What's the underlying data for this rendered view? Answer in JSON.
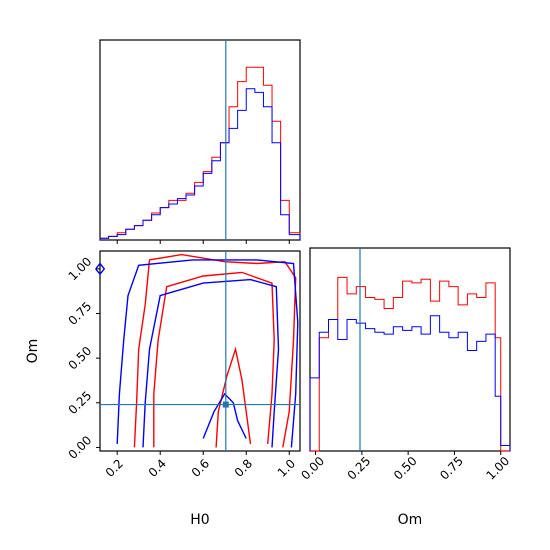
{
  "chart_data": [
    {
      "id": "h0_hist",
      "type": "histogram",
      "xlabel": "",
      "ylabel": "",
      "xlim": [
        0.12,
        1.05
      ],
      "ylim": [
        0,
        1.0
      ],
      "truth_line_x": 0.705,
      "bin_edges": [
        0.12,
        0.16,
        0.2,
        0.24,
        0.28,
        0.32,
        0.36,
        0.4,
        0.44,
        0.48,
        0.52,
        0.56,
        0.6,
        0.64,
        0.68,
        0.72,
        0.76,
        0.8,
        0.84,
        0.88,
        0.92,
        0.96,
        1.0,
        1.05
      ],
      "series": [
        {
          "color": "#ff0000",
          "values": [
            0.01,
            0.02,
            0.04,
            0.06,
            0.08,
            0.11,
            0.15,
            0.18,
            0.22,
            0.22,
            0.26,
            0.32,
            0.38,
            0.46,
            0.54,
            0.74,
            0.88,
            0.96,
            0.96,
            0.86,
            0.66,
            0.22,
            0.04
          ]
        },
        {
          "color": "#0000ff",
          "values": [
            0.01,
            0.02,
            0.03,
            0.06,
            0.08,
            0.11,
            0.14,
            0.18,
            0.2,
            0.23,
            0.25,
            0.3,
            0.37,
            0.44,
            0.54,
            0.62,
            0.72,
            0.84,
            0.82,
            0.74,
            0.54,
            0.14,
            0.03
          ]
        }
      ]
    },
    {
      "id": "h0_om_contour",
      "type": "contour",
      "xlabel": "H0",
      "ylabel": "Om",
      "xlim": [
        0.12,
        1.05
      ],
      "ylim": [
        -0.02,
        1.1
      ],
      "xticks": [
        0.2,
        0.4,
        0.6,
        0.8,
        1.0
      ],
      "xtick_labels": [
        "0.2",
        "0.4",
        "0.6",
        "0.8",
        "1.0"
      ],
      "yticks": [
        0.0,
        0.25,
        0.5,
        0.75,
        1.0
      ],
      "ytick_labels": [
        "0.00",
        "0.25",
        "0.50",
        "0.75",
        "1.00"
      ],
      "truth_x": 0.705,
      "truth_y": 0.24,
      "contours": [
        {
          "color": "#ff0000",
          "points": [
            [
              0.28,
              0.0
            ],
            [
              0.29,
              0.25
            ],
            [
              0.3,
              0.55
            ],
            [
              0.33,
              0.8
            ],
            [
              0.35,
              1.05
            ],
            [
              0.5,
              1.08
            ],
            [
              0.7,
              1.04
            ],
            [
              0.85,
              1.03
            ],
            [
              0.98,
              1.04
            ],
            [
              1.03,
              0.95
            ],
            [
              1.02,
              0.6
            ],
            [
              1.0,
              0.2
            ],
            [
              0.97,
              0.0
            ]
          ]
        },
        {
          "color": "#ff0000",
          "points": [
            [
              0.37,
              0.0
            ],
            [
              0.37,
              0.3
            ],
            [
              0.39,
              0.6
            ],
            [
              0.43,
              0.9
            ],
            [
              0.6,
              0.96
            ],
            [
              0.78,
              0.98
            ],
            [
              0.92,
              0.92
            ],
            [
              0.93,
              0.6
            ],
            [
              0.92,
              0.3
            ],
            [
              0.9,
              0.02
            ]
          ]
        },
        {
          "color": "#ff0000",
          "points": [
            [
              0.66,
              0.0
            ],
            [
              0.67,
              0.2
            ],
            [
              0.71,
              0.4
            ],
            [
              0.75,
              0.55
            ],
            [
              0.78,
              0.38
            ],
            [
              0.8,
              0.2
            ],
            [
              0.82,
              0.02
            ]
          ]
        },
        {
          "color": "#0000ff",
          "points": [
            [
              0.2,
              0.02
            ],
            [
              0.21,
              0.3
            ],
            [
              0.23,
              0.6
            ],
            [
              0.25,
              0.85
            ],
            [
              0.3,
              1.02
            ],
            [
              0.55,
              1.05
            ],
            [
              0.85,
              1.05
            ],
            [
              1.02,
              1.03
            ],
            [
              1.04,
              0.7
            ],
            [
              1.03,
              0.3
            ],
            [
              1.01,
              0.0
            ]
          ]
        },
        {
          "color": "#0000ff",
          "points": [
            [
              0.32,
              0.0
            ],
            [
              0.33,
              0.25
            ],
            [
              0.35,
              0.55
            ],
            [
              0.4,
              0.85
            ],
            [
              0.6,
              0.92
            ],
            [
              0.82,
              0.94
            ],
            [
              0.94,
              0.9
            ],
            [
              0.95,
              0.55
            ],
            [
              0.93,
              0.2
            ],
            [
              0.92,
              0.0
            ]
          ]
        },
        {
          "color": "#0000ff",
          "points": [
            [
              0.6,
              0.05
            ],
            [
              0.65,
              0.2
            ],
            [
              0.7,
              0.3
            ],
            [
              0.74,
              0.25
            ],
            [
              0.76,
              0.15
            ],
            [
              0.8,
              0.05
            ]
          ]
        },
        {
          "color": "#0000ff",
          "points": [
            [
              0.1,
              1.0
            ],
            [
              0.12,
              1.03
            ],
            [
              0.14,
              1.0
            ],
            [
              0.12,
              0.97
            ],
            [
              0.1,
              1.0
            ]
          ]
        }
      ]
    },
    {
      "id": "om_hist",
      "type": "histogram",
      "xlabel": "Om",
      "ylabel": "",
      "xlim": [
        -0.03,
        1.05
      ],
      "ylim": [
        0,
        1.0
      ],
      "truth_line_x": 0.24,
      "xticks": [
        0.0,
        0.25,
        0.5,
        0.75,
        1.0
      ],
      "xtick_labels": [
        "0.00",
        "0.25",
        "0.50",
        "0.75",
        "1.00"
      ],
      "bin_edges": [
        -0.03,
        0.02,
        0.07,
        0.12,
        0.17,
        0.22,
        0.27,
        0.32,
        0.37,
        0.42,
        0.47,
        0.52,
        0.57,
        0.62,
        0.67,
        0.72,
        0.77,
        0.82,
        0.87,
        0.92,
        0.97,
        1.0,
        1.05
      ],
      "series": [
        {
          "color": "#ff0000",
          "values": [
            0.0,
            0.62,
            0.72,
            0.95,
            0.86,
            0.9,
            0.84,
            0.83,
            0.78,
            0.84,
            0.93,
            0.92,
            0.94,
            0.82,
            0.93,
            0.9,
            0.8,
            0.86,
            0.84,
            0.92,
            0.62,
            0.0
          ]
        },
        {
          "color": "#0000ff",
          "values": [
            0.4,
            0.65,
            0.72,
            0.61,
            0.72,
            0.7,
            0.67,
            0.65,
            0.64,
            0.68,
            0.66,
            0.68,
            0.64,
            0.74,
            0.65,
            0.62,
            0.65,
            0.55,
            0.6,
            0.64,
            0.3,
            0.03
          ]
        }
      ]
    }
  ]
}
